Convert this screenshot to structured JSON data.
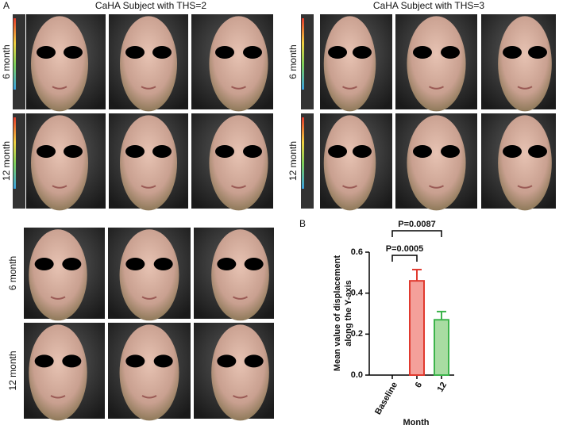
{
  "panel_a": {
    "label": "A",
    "blocks": [
      {
        "title": "CaHA Subject with THS=2",
        "rows": [
          "6 month",
          "12 month"
        ]
      },
      {
        "title": "CaHA Subject with THS=3",
        "rows": [
          "6 month",
          "12 month"
        ]
      },
      {
        "rows": [
          "6 month",
          "12 month"
        ]
      }
    ]
  },
  "chart_data": {
    "type": "bar",
    "panel_label": "B",
    "xlabel": "Month",
    "ylabel": [
      "Mean value of displacement",
      "along the Y-axis"
    ],
    "categories": [
      "Baseline",
      "6",
      "12"
    ],
    "values": [
      0,
      0.46,
      0.27
    ],
    "errors": [
      0,
      0.055,
      0.04
    ],
    "colors": [
      "#f4a09a",
      "#f4a09a",
      "#a8dca2"
    ],
    "edge_colors": [
      "#e03a2f",
      "#e03a2f",
      "#3cb44b"
    ],
    "ylim": [
      0,
      0.6
    ],
    "yticks": [
      {
        "value": 0,
        "label": "0.0"
      },
      0.2,
      0.4,
      0.6
    ],
    "annotations": [
      "P=0.0087",
      "P=0.0005"
    ]
  }
}
